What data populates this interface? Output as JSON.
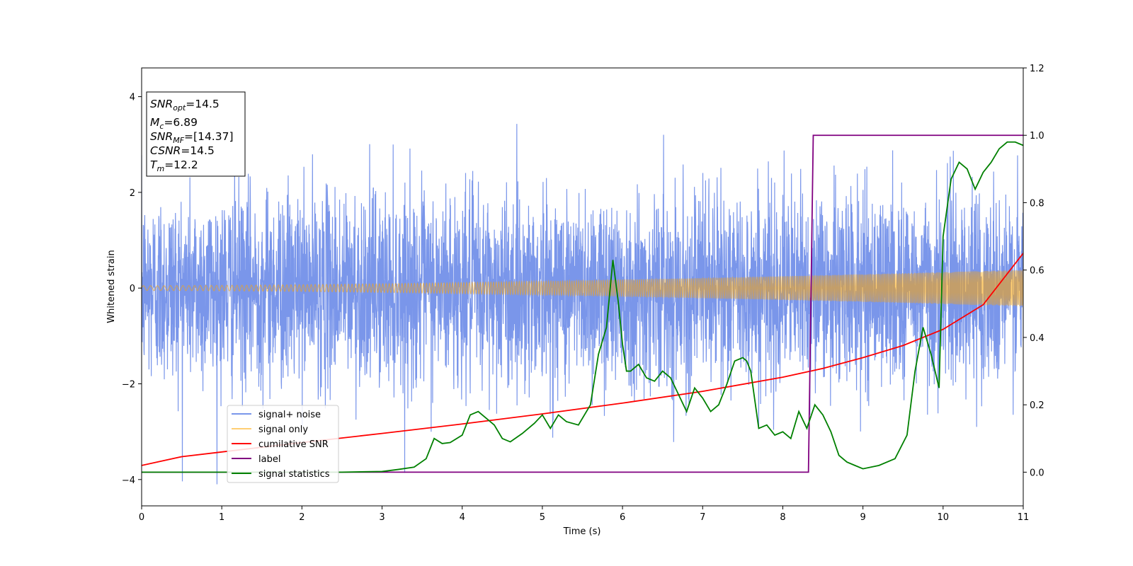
{
  "chart_data": {
    "type": "line",
    "title": "",
    "xlabel": "Time (s)",
    "ylabel": "Whitened strain",
    "y2label": "",
    "xlim": [
      0,
      11
    ],
    "ylim": [
      -4.55,
      4.6
    ],
    "y2lim": [
      -0.1,
      1.2
    ],
    "xticks": [
      "0",
      "1",
      "2",
      "3",
      "4",
      "5",
      "6",
      "7",
      "8",
      "9",
      "10",
      "11"
    ],
    "yticks": [
      "−4",
      "−2",
      "0",
      "2",
      "4"
    ],
    "y2ticks": [
      "0.0",
      "0.2",
      "0.4",
      "0.6",
      "0.8",
      "1.0",
      "1.2"
    ],
    "grid": false,
    "legend_position": "lower-left",
    "annotation": {
      "snr_opt": {
        "sym": "SNR",
        "sub": "opt",
        "val": "=14.5"
      },
      "mc": {
        "sym": "M",
        "sub": "c",
        "val": "=6.89"
      },
      "snr_mf": {
        "sym": "SNR",
        "sub": "MF",
        "val": "=[14.37]"
      },
      "csnr": {
        "sym": "CSNR",
        "sub": "",
        "val": "=14.5"
      },
      "tm": {
        "sym": "T",
        "sub": "m",
        "val": "=12.2"
      }
    },
    "series": [
      {
        "name": "signal+ noise",
        "color": "#4169e1",
        "axis": "left",
        "kind": "noise",
        "approx_std": 1.0,
        "range": [
          -4.1,
          4.2
        ]
      },
      {
        "name": "signal only",
        "color": "#ffa500",
        "axis": "left",
        "kind": "chirp",
        "amplitude_start": 0.05,
        "amplitude_end": 0.38
      },
      {
        "name": "cumilative SNR",
        "color": "#ff0000",
        "axis": "right",
        "x": [
          0,
          0.5,
          1,
          2,
          3,
          4,
          5,
          6,
          7,
          8,
          8.5,
          9,
          9.5,
          10,
          10.5,
          11
        ],
        "y": [
          0.02,
          0.046,
          0.06,
          0.088,
          0.115,
          0.143,
          0.173,
          0.205,
          0.24,
          0.282,
          0.308,
          0.34,
          0.376,
          0.424,
          0.497,
          0.65
        ]
      },
      {
        "name": "label",
        "color": "#800080",
        "axis": "right",
        "x": [
          0,
          8.32,
          8.38,
          11
        ],
        "y": [
          0.0,
          0.0,
          1.0,
          1.0
        ]
      },
      {
        "name": "signal statistics",
        "color": "#008000",
        "axis": "right",
        "x": [
          0,
          0.5,
          1,
          1.5,
          2,
          2.5,
          3,
          3.2,
          3.4,
          3.55,
          3.65,
          3.75,
          3.85,
          4.0,
          4.1,
          4.2,
          4.3,
          4.4,
          4.5,
          4.6,
          4.75,
          4.9,
          5.0,
          5.1,
          5.2,
          5.3,
          5.45,
          5.6,
          5.7,
          5.8,
          5.88,
          5.95,
          6.0,
          6.05,
          6.1,
          6.2,
          6.3,
          6.4,
          6.5,
          6.6,
          6.7,
          6.8,
          6.9,
          7.0,
          7.1,
          7.2,
          7.3,
          7.4,
          7.5,
          7.55,
          7.6,
          7.7,
          7.8,
          7.9,
          8.0,
          8.1,
          8.2,
          8.3,
          8.4,
          8.5,
          8.6,
          8.7,
          8.8,
          8.9,
          9.0,
          9.2,
          9.4,
          9.55,
          9.65,
          9.75,
          9.85,
          9.95,
          10.0,
          10.1,
          10.2,
          10.3,
          10.4,
          10.5,
          10.6,
          10.7,
          10.8,
          10.9,
          11.0
        ],
        "y": [
          0.0,
          0.0,
          0.0,
          0.0,
          0.0,
          0.0,
          0.002,
          0.008,
          0.015,
          0.04,
          0.1,
          0.085,
          0.088,
          0.11,
          0.17,
          0.18,
          0.16,
          0.14,
          0.1,
          0.09,
          0.115,
          0.145,
          0.17,
          0.13,
          0.17,
          0.15,
          0.14,
          0.2,
          0.35,
          0.43,
          0.63,
          0.5,
          0.38,
          0.3,
          0.3,
          0.32,
          0.28,
          0.27,
          0.3,
          0.28,
          0.23,
          0.18,
          0.25,
          0.22,
          0.18,
          0.2,
          0.26,
          0.33,
          0.34,
          0.33,
          0.3,
          0.13,
          0.14,
          0.11,
          0.12,
          0.1,
          0.18,
          0.13,
          0.2,
          0.17,
          0.12,
          0.05,
          0.03,
          0.02,
          0.01,
          0.02,
          0.04,
          0.11,
          0.3,
          0.43,
          0.35,
          0.25,
          0.7,
          0.87,
          0.92,
          0.9,
          0.84,
          0.89,
          0.92,
          0.96,
          0.98,
          0.98,
          0.97
        ]
      }
    ]
  }
}
